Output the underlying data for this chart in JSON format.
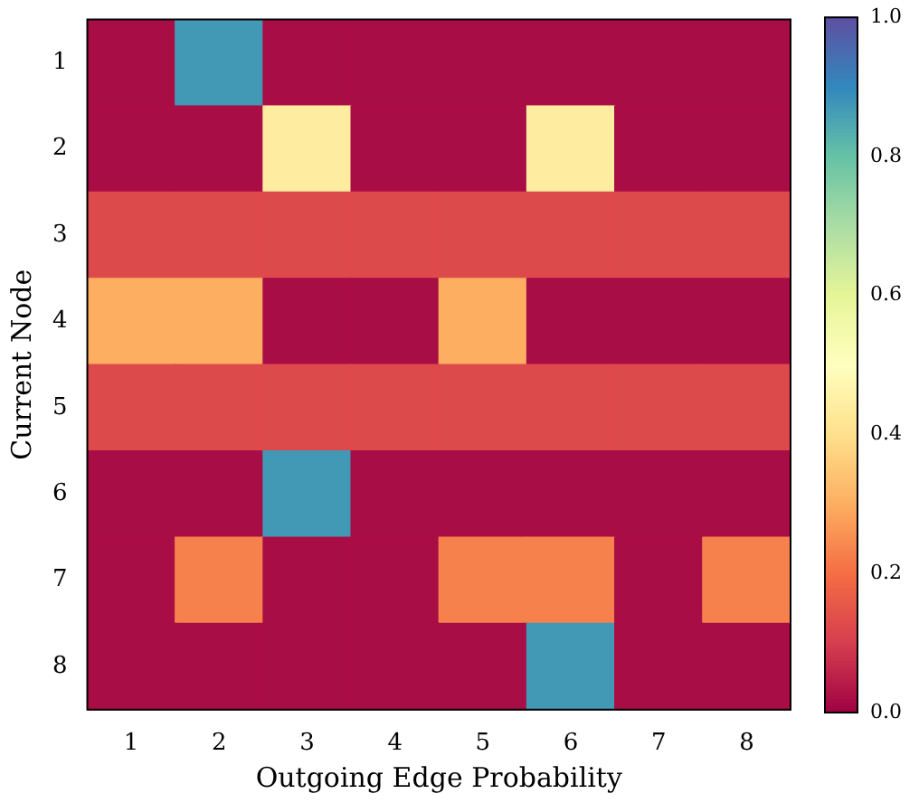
{
  "chart_data": {
    "type": "heatmap",
    "xlabel": "Outgoing Edge Probability",
    "ylabel": "Current Node",
    "categories": [
      "1",
      "2",
      "3",
      "4",
      "5",
      "6",
      "7",
      "8"
    ],
    "y_categories": [
      "1",
      "2",
      "3",
      "4",
      "5",
      "6",
      "7",
      "8"
    ],
    "cells": [
      [
        0.02,
        0.87,
        0.02,
        0.02,
        0.02,
        0.02,
        0.02,
        0.02
      ],
      [
        0.02,
        0.02,
        0.44,
        0.02,
        0.02,
        0.44,
        0.02,
        0.02
      ],
      [
        0.125,
        0.125,
        0.125,
        0.125,
        0.125,
        0.125,
        0.125,
        0.125
      ],
      [
        0.3,
        0.3,
        0.02,
        0.02,
        0.3,
        0.02,
        0.02,
        0.02
      ],
      [
        0.125,
        0.125,
        0.125,
        0.125,
        0.125,
        0.125,
        0.125,
        0.125
      ],
      [
        0.02,
        0.02,
        0.87,
        0.02,
        0.02,
        0.02,
        0.02,
        0.02
      ],
      [
        0.02,
        0.23,
        0.02,
        0.02,
        0.23,
        0.23,
        0.02,
        0.23
      ],
      [
        0.02,
        0.02,
        0.02,
        0.02,
        0.02,
        0.87,
        0.02,
        0.02
      ]
    ],
    "clim": [
      0,
      1
    ],
    "cticks": [
      {
        "value": 0,
        "label": "0.0"
      },
      {
        "value": 0.2,
        "label": "0.2"
      },
      {
        "value": 0.4,
        "label": "0.4"
      },
      {
        "value": 0.6,
        "label": "0.6"
      },
      {
        "value": 0.8,
        "label": "0.8"
      },
      {
        "value": 1,
        "label": "1.0"
      }
    ]
  }
}
